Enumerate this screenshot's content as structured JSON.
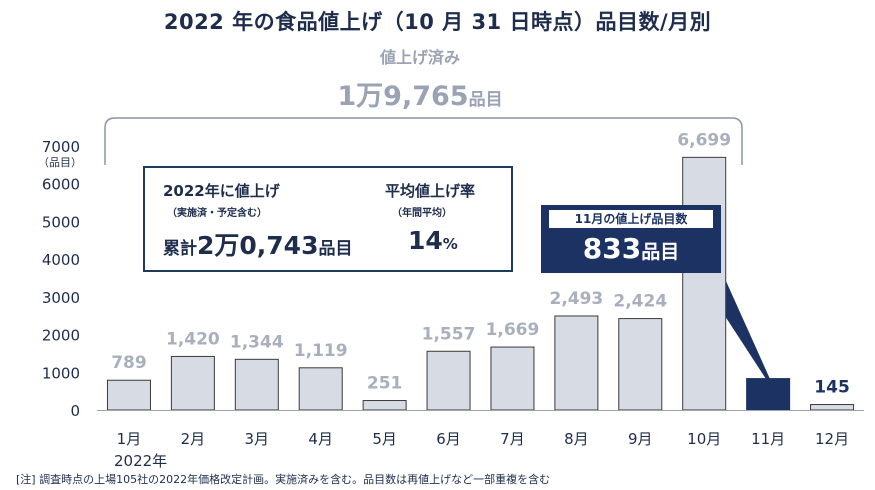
{
  "title": "2022 年の食品値上げ（10 月 31 日時点）品目数/月別",
  "completed": {
    "label": "値上げ済み",
    "value_number": "1万9,765",
    "value_unit": "品目"
  },
  "info_box": {
    "heading_left": "2022年に値上げ",
    "sub_left": "（実施済・予定含む）",
    "total_prefix": "累計",
    "total_number": "2万0,743",
    "total_unit": "品目",
    "heading_right": "平均値上げ率",
    "sub_right": "（年間平均）",
    "rate_number": "14",
    "rate_unit": "%"
  },
  "callout": {
    "label": "11月の値上げ品目数",
    "number": "833",
    "unit": "品目"
  },
  "axis": {
    "unit_label": "（品目）",
    "year_label": "2022年"
  },
  "footnote": "[注]  調査時点の上場105社の2022年価格改定計画。実施済みを含む。品目数は再値上げなど一部重複を含む",
  "colors": {
    "bar": "#d7dbe3",
    "bar_border": "#3a3a3a",
    "bar_highlight": "#1b3263",
    "value_label": "#a9b0bd",
    "value_label_highlight": "#1b3263"
  },
  "chart_data": {
    "type": "bar",
    "title": "2022 年の食品値上げ（10 月 31 日時点）品目数/月別",
    "categories": [
      "1月",
      "2月",
      "3月",
      "4月",
      "5月",
      "6月",
      "7月",
      "8月",
      "9月",
      "10月",
      "11月",
      "12月"
    ],
    "values": [
      789,
      1420,
      1344,
      1119,
      251,
      1557,
      1669,
      2493,
      2424,
      6699,
      833,
      145
    ],
    "value_labels": [
      "789",
      "1,420",
      "1,344",
      "1,119",
      "251",
      "1,557",
      "1,669",
      "2,493",
      "2,424",
      "6,699",
      "",
      "145"
    ],
    "highlight_index": 10,
    "ylim": [
      0,
      7000
    ],
    "yticks": [
      0,
      1000,
      2000,
      3000,
      4000,
      5000,
      6000,
      7000
    ],
    "xlabel": "",
    "ylabel": "（品目）",
    "grid": false
  }
}
